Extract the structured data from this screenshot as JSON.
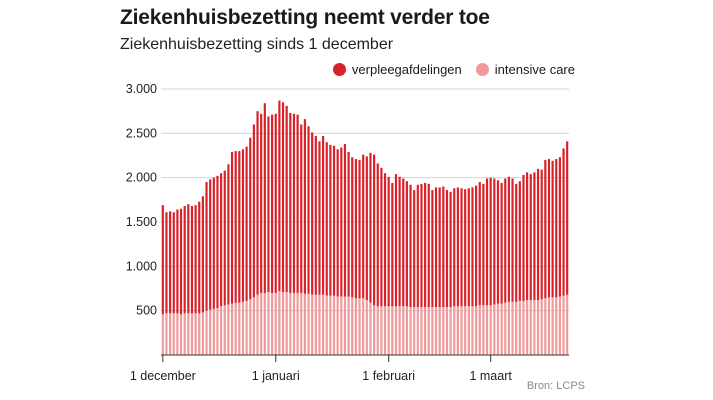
{
  "title": "Ziekenhuisbezetting neemt verder toe",
  "subtitle": "Ziekenhuisbezetting sinds 1 december",
  "source": "Bron: LCPS",
  "colors": {
    "verpleegafdelingen": "#d9212a",
    "intensive_care": "#f19a9c",
    "grid": "#d4d4d4"
  },
  "chart_data": {
    "type": "bar",
    "stacked": true,
    "ylim": [
      0,
      3000
    ],
    "yticks": [
      500,
      1000,
      1500,
      2000,
      2500,
      3000
    ],
    "ytick_labels": [
      "500",
      "1.000",
      "1.500",
      "2.000",
      "2.500",
      "3.000"
    ],
    "xticks": [
      {
        "index": 0,
        "label": "1 december"
      },
      {
        "index": 31,
        "label": "1 januari"
      },
      {
        "index": 62,
        "label": "1 februari"
      },
      {
        "index": 90,
        "label": "1 maart"
      }
    ],
    "legend_position": "top-right",
    "series": [
      {
        "name": "verpleegafdelingen",
        "total_values": [
          1690,
          1610,
          1620,
          1610,
          1640,
          1650,
          1680,
          1700,
          1680,
          1690,
          1730,
          1790,
          1950,
          1980,
          2000,
          2020,
          2050,
          2080,
          2150,
          2290,
          2300,
          2300,
          2320,
          2350,
          2450,
          2600,
          2750,
          2720,
          2840,
          2690,
          2710,
          2720,
          2870,
          2850,
          2810,
          2730,
          2720,
          2710,
          2600,
          2660,
          2580,
          2510,
          2470,
          2410,
          2470,
          2400,
          2370,
          2360,
          2320,
          2340,
          2380,
          2290,
          2230,
          2210,
          2200,
          2260,
          2240,
          2280,
          2260,
          2160,
          2110,
          2050,
          2010,
          1940,
          2040,
          2010,
          1990,
          1960,
          1920,
          1860,
          1920,
          1930,
          1940,
          1930,
          1860,
          1890,
          1890,
          1900,
          1860,
          1840,
          1880,
          1890,
          1880,
          1870,
          1880,
          1890,
          1910,
          1950,
          1930,
          1990,
          2000,
          1990,
          1970,
          1940,
          1990,
          2010,
          1990,
          1930,
          1960,
          2030,
          2060,
          2040,
          2060,
          2100,
          2090,
          2200,
          2210,
          2190,
          2210,
          2230,
          2330,
          2410
        ]
      },
      {
        "name": "intensive care",
        "values": [
          460,
          470,
          470,
          470,
          470,
          460,
          470,
          470,
          470,
          470,
          470,
          480,
          500,
          510,
          520,
          530,
          550,
          560,
          570,
          580,
          590,
          590,
          600,
          610,
          630,
          650,
          680,
          700,
          700,
          710,
          700,
          700,
          720,
          710,
          710,
          700,
          700,
          700,
          700,
          690,
          690,
          680,
          680,
          680,
          680,
          670,
          670,
          670,
          660,
          660,
          660,
          660,
          650,
          640,
          640,
          640,
          620,
          590,
          560,
          550,
          550,
          550,
          550,
          550,
          550,
          550,
          550,
          550,
          540,
          540,
          540,
          540,
          540,
          540,
          540,
          540,
          540,
          540,
          540,
          540,
          550,
          550,
          550,
          550,
          550,
          550,
          550,
          560,
          560,
          560,
          560,
          570,
          580,
          580,
          590,
          600,
          600,
          600,
          610,
          610,
          620,
          620,
          620,
          620,
          630,
          640,
          650,
          650,
          650,
          660,
          670,
          680
        ]
      }
    ]
  }
}
